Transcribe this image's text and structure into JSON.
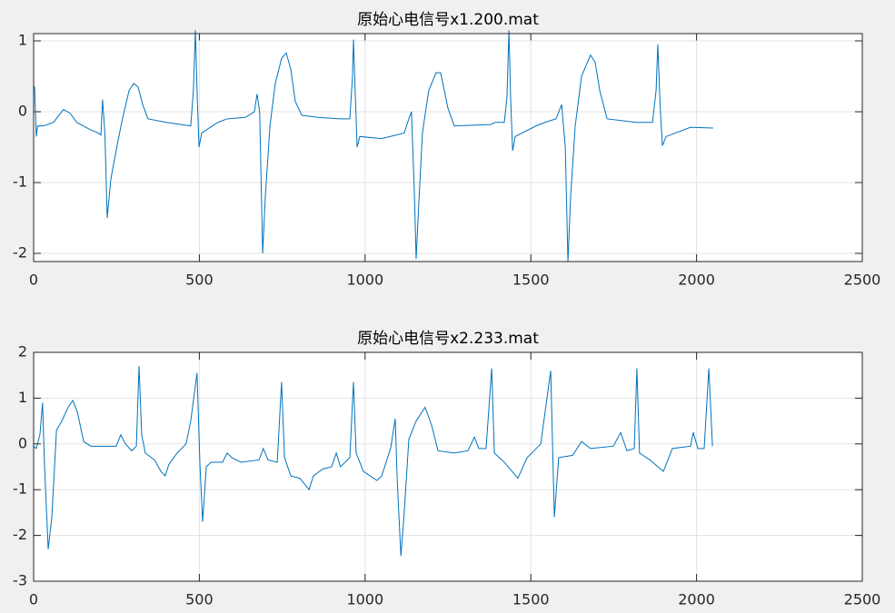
{
  "chart_data": [
    {
      "type": "line",
      "title": "原始心电信号x1.200.mat",
      "color": "#0072bd",
      "grid": true,
      "xlim": [
        0,
        2500
      ],
      "xticks": [
        0,
        500,
        1000,
        1500,
        2000,
        2500
      ],
      "ylim": [
        -2.115,
        1.103
      ],
      "yticks": [
        -2,
        -1,
        0,
        1
      ],
      "x": [
        0,
        3,
        8,
        12,
        30,
        60,
        90,
        110,
        130,
        150,
        170,
        195,
        203,
        208,
        215,
        222,
        233,
        255,
        268,
        288,
        302,
        315,
        329,
        345,
        400,
        474,
        482,
        488,
        493,
        499,
        507,
        556,
        584,
        639,
        666,
        674,
        682,
        691,
        699,
        713,
        729,
        748,
        762,
        776,
        789,
        809,
        858,
        926,
        954,
        962,
        965,
        970,
        976,
        984,
        1050,
        1118,
        1132,
        1140,
        1149,
        1154,
        1162,
        1173,
        1192,
        1214,
        1228,
        1250,
        1269,
        1379,
        1393,
        1420,
        1428,
        1434,
        1439,
        1445,
        1453,
        1516,
        1543,
        1576,
        1593,
        1604,
        1612,
        1620,
        1634,
        1653,
        1680,
        1694,
        1708,
        1730,
        1817,
        1867,
        1878,
        1883,
        1891,
        1897,
        1908,
        1982,
        2050
      ],
      "values": [
        0.36,
        0.35,
        -0.35,
        -0.2,
        -0.2,
        -0.15,
        0.03,
        -0.02,
        -0.15,
        -0.2,
        -0.25,
        -0.3,
        -0.33,
        0.17,
        -0.3,
        -1.5,
        -0.95,
        -0.4,
        -0.1,
        0.3,
        0.4,
        0.35,
        0.1,
        -0.1,
        -0.15,
        -0.2,
        0.3,
        1.15,
        0.3,
        -0.5,
        -0.3,
        -0.15,
        -0.1,
        -0.08,
        0,
        0.25,
        0,
        -2.0,
        -1.2,
        -0.2,
        0.4,
        0.75,
        0.83,
        0.6,
        0.15,
        -0.05,
        -0.08,
        -0.1,
        -0.1,
        0.5,
        1.02,
        0.3,
        -0.5,
        -0.35,
        -0.38,
        -0.3,
        -0.1,
        0.0,
        -1.2,
        -2.08,
        -1.3,
        -0.3,
        0.3,
        0.55,
        0.55,
        0.05,
        -0.2,
        -0.18,
        -0.15,
        -0.15,
        0.2,
        1.15,
        0.2,
        -0.55,
        -0.35,
        -0.2,
        -0.15,
        -0.1,
        0.1,
        -0.5,
        -2.12,
        -1.2,
        -0.2,
        0.5,
        0.8,
        0.7,
        0.3,
        -0.1,
        -0.15,
        -0.15,
        0.3,
        0.95,
        0.0,
        -0.48,
        -0.35,
        -0.22,
        -0.23
      ]
    },
    {
      "type": "line",
      "title": "原始心电信号x2.233.mat",
      "color": "#0072bd",
      "grid": true,
      "xlim": [
        0,
        2500
      ],
      "xticks": [
        0,
        500,
        1000,
        1500,
        2000,
        2500
      ],
      "ylim": [
        -3,
        2
      ],
      "yticks": [
        -3,
        -2,
        -1,
        0,
        1,
        2
      ],
      "x": [
        0,
        8,
        19,
        27,
        33,
        44,
        55,
        69,
        85,
        104,
        118,
        132,
        151,
        173,
        228,
        249,
        263,
        277,
        296,
        310,
        318,
        326,
        337,
        365,
        384,
        397,
        408,
        433,
        460,
        474,
        493,
        502,
        510,
        521,
        535,
        570,
        584,
        598,
        625,
        680,
        693,
        707,
        735,
        748,
        757,
        776,
        803,
        831,
        844,
        872,
        899,
        913,
        926,
        954,
        965,
        973,
        995,
        1036,
        1050,
        1077,
        1091,
        1097,
        1108,
        1118,
        1132,
        1154,
        1181,
        1201,
        1220,
        1269,
        1310,
        1330,
        1343,
        1365,
        1382,
        1390,
        1420,
        1461,
        1489,
        1530,
        1560,
        1571,
        1584,
        1626,
        1653,
        1680,
        1749,
        1771,
        1790,
        1812,
        1820,
        1828,
        1859,
        1900,
        1927,
        1982,
        1990,
        2004,
        2023,
        2037,
        2048
      ],
      "values": [
        -0.05,
        -0.1,
        0.2,
        0.9,
        -0.5,
        -2.3,
        -1.6,
        0.3,
        0.5,
        0.8,
        0.95,
        0.7,
        0.05,
        -0.05,
        -0.05,
        -0.05,
        0.2,
        0.0,
        -0.15,
        -0.05,
        1.7,
        0.2,
        -0.2,
        -0.35,
        -0.6,
        -0.7,
        -0.45,
        -0.2,
        0.0,
        0.5,
        1.55,
        -0.5,
        -1.7,
        -0.5,
        -0.4,
        -0.4,
        -0.2,
        -0.3,
        -0.4,
        -0.35,
        -0.1,
        -0.35,
        -0.4,
        1.35,
        -0.3,
        -0.7,
        -0.75,
        -1.0,
        -0.7,
        -0.55,
        -0.5,
        -0.2,
        -0.5,
        -0.3,
        1.35,
        -0.2,
        -0.6,
        -0.8,
        -0.7,
        -0.1,
        0.55,
        -0.8,
        -2.45,
        -1.5,
        0.1,
        0.5,
        0.8,
        0.4,
        -0.15,
        -0.2,
        -0.15,
        0.15,
        -0.1,
        -0.1,
        1.65,
        -0.2,
        -0.4,
        -0.75,
        -0.3,
        0.0,
        1.6,
        -1.6,
        -0.3,
        -0.25,
        0.05,
        -0.1,
        -0.05,
        0.25,
        -0.15,
        -0.1,
        1.65,
        -0.2,
        -0.35,
        -0.6,
        -0.1,
        -0.05,
        0.25,
        -0.1,
        -0.1,
        1.65,
        -0.05
      ]
    }
  ]
}
